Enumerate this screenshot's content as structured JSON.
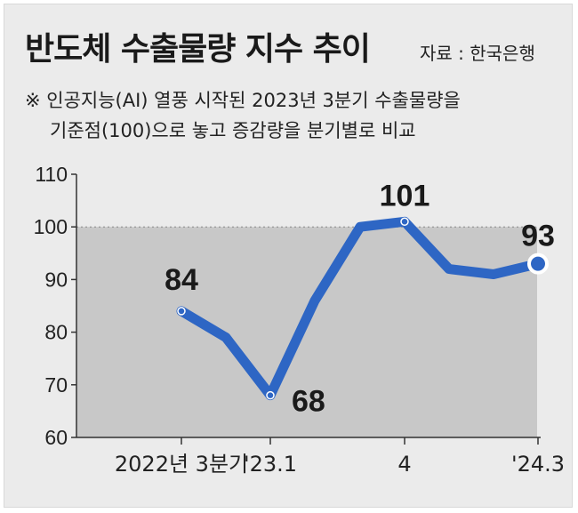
{
  "title": "반도체 수출물량 지수 추이",
  "source": "자료 : 한국은행",
  "note_line1": "※ 인공지능(AI) 열풍 시작된 2023년 3분기 수출물량을",
  "note_line2": "기준점(100)으로 놓고 증감량을 분기별로 비교",
  "colors": {
    "line": "#2e66c4",
    "plot_bg": "#c8c8c8",
    "frame_bg": "#ebebeb"
  },
  "chart_data": {
    "type": "line",
    "title": "반도체 수출물량 지수 추이",
    "x": [
      "2022Q3",
      "2022Q4",
      "2023Q1",
      "2023Q2",
      "2023Q3",
      "2023Q4",
      "2024Q1",
      "2024Q2",
      "2024Q3"
    ],
    "series": [
      {
        "values": [
          84,
          79,
          68,
          86,
          100,
          101,
          92,
          91,
          93
        ]
      }
    ],
    "x_tick_labels": [
      {
        "index": 0,
        "label": "2022년 3분기"
      },
      {
        "index": 2,
        "label": "'23.1"
      },
      {
        "index": 5,
        "label": "4"
      },
      {
        "index": 8,
        "label": "'24.3"
      }
    ],
    "data_labels": [
      {
        "index": 0,
        "label": "84"
      },
      {
        "index": 2,
        "label": "68"
      },
      {
        "index": 5,
        "label": "101"
      },
      {
        "index": 8,
        "label": "93"
      }
    ],
    "yticks": [
      "60",
      "70",
      "80",
      "90",
      "100",
      "110"
    ],
    "ylim": [
      60,
      110
    ],
    "reference_line": 100,
    "xlabel": "",
    "ylabel": ""
  }
}
